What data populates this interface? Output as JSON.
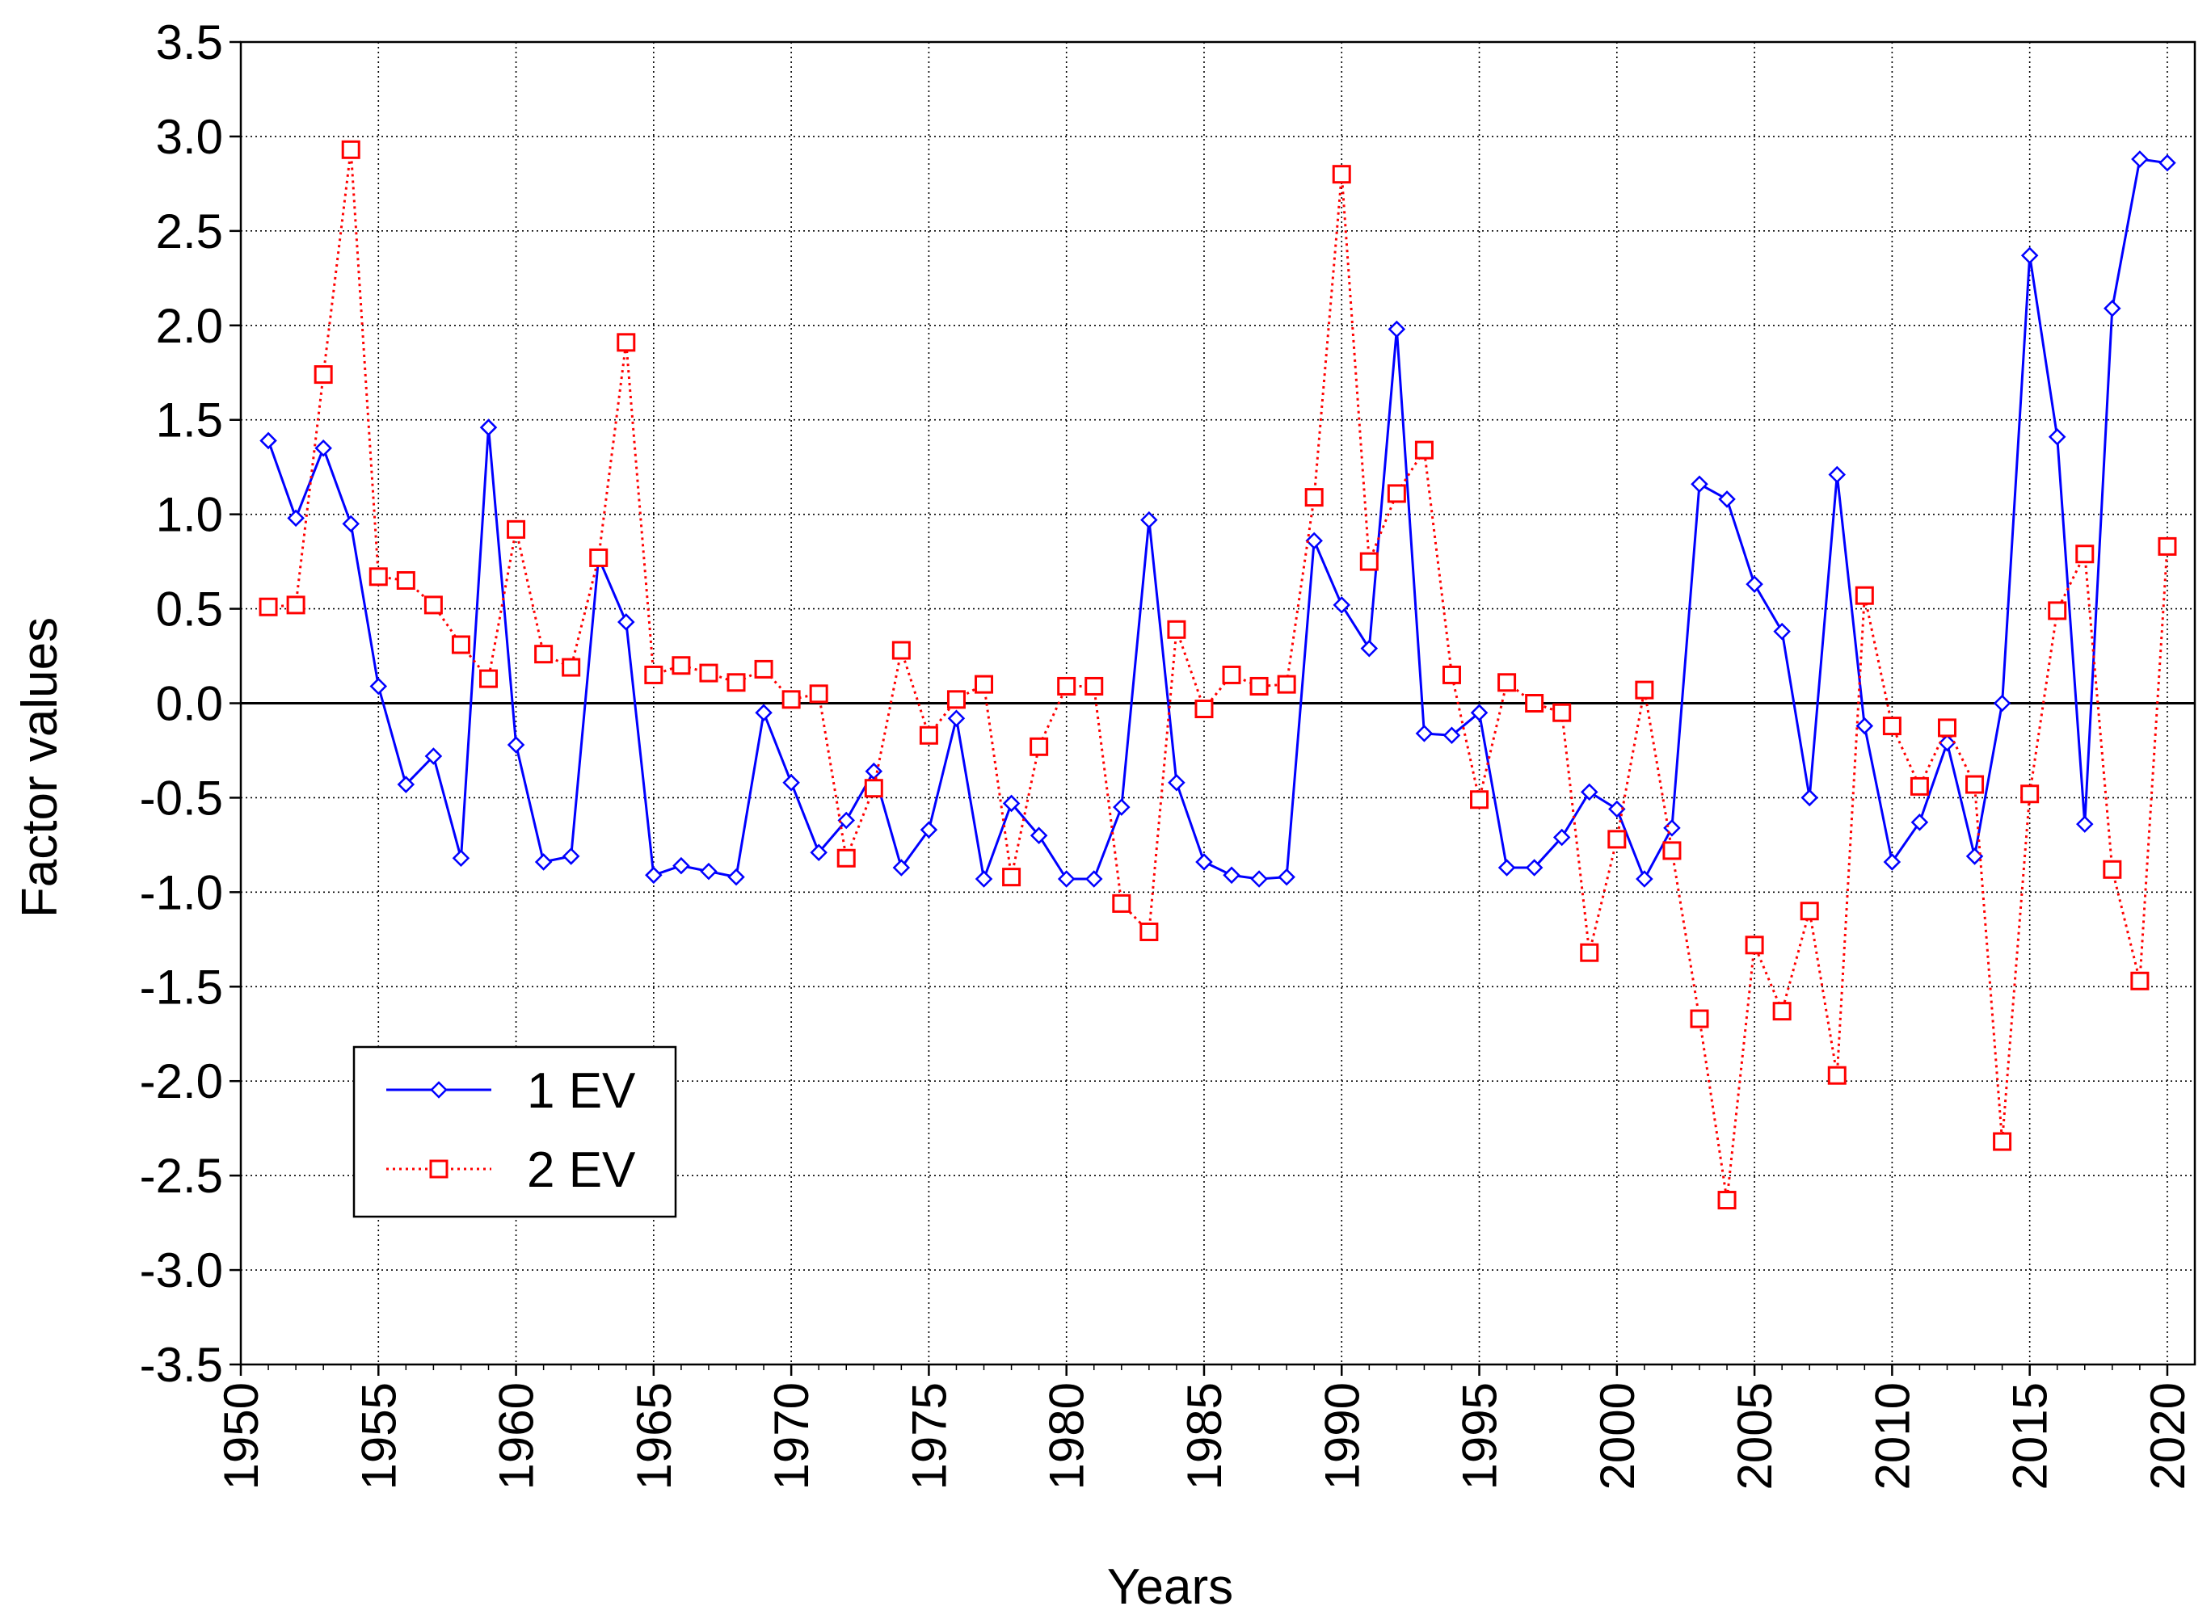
{
  "chart_data": {
    "type": "line",
    "title": "",
    "xlabel": "Years",
    "ylabel": "Factor values",
    "xlim": [
      1950,
      2021
    ],
    "ylim": [
      -3.5,
      3.5
    ],
    "xticks": [
      1950,
      1955,
      1960,
      1965,
      1970,
      1975,
      1980,
      1985,
      1990,
      1995,
      2000,
      2005,
      2010,
      2015,
      2020
    ],
    "yticks": [
      "3.5",
      "3.0",
      "2.5",
      "2.0",
      "1.5",
      "1.0",
      "0.5",
      "0.0",
      "-0.5",
      "-1.0",
      "-1.5",
      "-2.0",
      "-2.5",
      "-3.0",
      "-3.5"
    ],
    "grid": true,
    "zero_line": true,
    "legend_position": "bottom-left",
    "x": [
      1951,
      1952,
      1953,
      1954,
      1955,
      1956,
      1957,
      1958,
      1959,
      1960,
      1961,
      1962,
      1963,
      1964,
      1965,
      1966,
      1967,
      1968,
      1969,
      1970,
      1971,
      1972,
      1973,
      1974,
      1975,
      1976,
      1977,
      1978,
      1979,
      1980,
      1981,
      1982,
      1983,
      1984,
      1985,
      1986,
      1987,
      1988,
      1989,
      1990,
      1991,
      1992,
      1993,
      1994,
      1995,
      1996,
      1997,
      1998,
      1999,
      2000,
      2001,
      2002,
      2003,
      2004,
      2005,
      2006,
      2007,
      2008,
      2009,
      2010,
      2011,
      2012,
      2013,
      2014,
      2015,
      2016,
      2017,
      2018,
      2019,
      2020
    ],
    "series": [
      {
        "name": "1 EV",
        "color": "#0000ff",
        "line_style": "solid",
        "marker": "diamond",
        "values": [
          1.39,
          0.98,
          1.35,
          0.95,
          0.09,
          -0.43,
          -0.28,
          -0.82,
          1.46,
          -0.22,
          -0.84,
          -0.81,
          0.77,
          0.43,
          -0.91,
          -0.86,
          -0.89,
          -0.92,
          -0.05,
          -0.42,
          -0.79,
          -0.62,
          -0.36,
          -0.87,
          -0.67,
          -0.08,
          -0.93,
          -0.53,
          -0.7,
          -0.93,
          -0.93,
          -0.55,
          0.97,
          -0.42,
          -0.84,
          -0.91,
          -0.93,
          -0.92,
          0.86,
          0.52,
          0.29,
          1.98,
          -0.16,
          -0.17,
          -0.05,
          -0.87,
          -0.87,
          -0.71,
          -0.47,
          -0.56,
          -0.93,
          -0.66,
          1.16,
          1.08,
          0.63,
          0.38,
          -0.5,
          1.21,
          -0.12,
          -0.84,
          -0.63,
          -0.21,
          -0.81,
          0.0,
          2.37,
          1.41,
          -0.64,
          2.09,
          2.88,
          2.86
        ]
      },
      {
        "name": "2 EV",
        "color": "#ff0000",
        "line_style": "dotted",
        "marker": "square",
        "values": [
          0.51,
          0.52,
          1.74,
          2.93,
          0.67,
          0.65,
          0.52,
          0.31,
          0.13,
          0.92,
          0.26,
          0.19,
          0.77,
          1.91,
          0.15,
          0.2,
          0.16,
          0.11,
          0.18,
          0.02,
          0.05,
          -0.82,
          -0.45,
          0.28,
          -0.17,
          0.02,
          0.1,
          -0.92,
          -0.23,
          0.09,
          0.09,
          -1.06,
          -1.21,
          0.39,
          -0.03,
          0.15,
          0.09,
          0.1,
          1.09,
          2.8,
          0.75,
          1.11,
          1.34,
          0.15,
          -0.51,
          0.11,
          0.0,
          -0.05,
          -1.32,
          -0.72,
          0.07,
          -0.78,
          -1.67,
          -2.63,
          -1.28,
          -1.63,
          -1.1,
          -1.97,
          0.57,
          -0.12,
          -0.44,
          -0.13,
          -0.43,
          -2.32,
          -0.48,
          0.49,
          0.79,
          -0.88,
          -1.47,
          0.83
        ]
      }
    ]
  }
}
